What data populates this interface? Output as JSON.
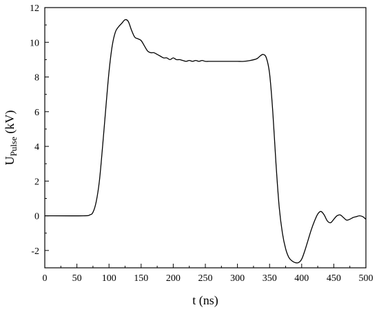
{
  "chart_data": {
    "type": "line",
    "title": "",
    "xlabel": "t (ns)",
    "ylabel": {
      "main": "U",
      "subscript": "Pulse",
      "unit": " (kV)"
    },
    "xlim": [
      0,
      500
    ],
    "ylim": [
      -3,
      12
    ],
    "xticks": [
      0,
      50,
      100,
      150,
      200,
      250,
      300,
      350,
      400,
      450,
      500
    ],
    "yticks": [
      -2,
      0,
      2,
      4,
      6,
      8,
      10,
      12
    ],
    "grid": false,
    "legend": "none",
    "line_color": "#000000",
    "series": [
      {
        "x": [
          0,
          60,
          70,
          75,
          80,
          85,
          90,
          95,
          100,
          105,
          110,
          115,
          120,
          125,
          130,
          135,
          140,
          145,
          150,
          155,
          160,
          165,
          170,
          175,
          180,
          185,
          190,
          195,
          200,
          205,
          210,
          215,
          220,
          225,
          230,
          235,
          240,
          245,
          250,
          255,
          260,
          270,
          280,
          290,
          300,
          310,
          320,
          330,
          335,
          340,
          345,
          350,
          355,
          360,
          365,
          370,
          375,
          380,
          385,
          390,
          395,
          400,
          405,
          410,
          415,
          420,
          425,
          430,
          435,
          440,
          445,
          450,
          455,
          460,
          465,
          470,
          475,
          480,
          485,
          490,
          495,
          500
        ],
        "y": [
          0,
          0,
          0.05,
          0.2,
          0.8,
          2.0,
          4.0,
          6.2,
          8.3,
          9.8,
          10.6,
          10.9,
          11.1,
          11.3,
          11.2,
          10.7,
          10.3,
          10.2,
          10.1,
          9.8,
          9.5,
          9.4,
          9.4,
          9.3,
          9.2,
          9.1,
          9.1,
          9.0,
          9.1,
          9.0,
          9.0,
          8.95,
          8.9,
          8.95,
          8.9,
          8.95,
          8.9,
          8.95,
          8.9,
          8.9,
          8.9,
          8.9,
          8.9,
          8.9,
          8.9,
          8.9,
          8.95,
          9.05,
          9.2,
          9.3,
          9.1,
          8.2,
          6.0,
          3.0,
          0.5,
          -1.0,
          -1.9,
          -2.4,
          -2.6,
          -2.7,
          -2.7,
          -2.5,
          -2.0,
          -1.4,
          -0.8,
          -0.3,
          0.1,
          0.25,
          0.05,
          -0.3,
          -0.4,
          -0.2,
          0.0,
          0.05,
          -0.1,
          -0.25,
          -0.2,
          -0.1,
          -0.05,
          0.0,
          -0.05,
          -0.2
        ]
      }
    ]
  }
}
